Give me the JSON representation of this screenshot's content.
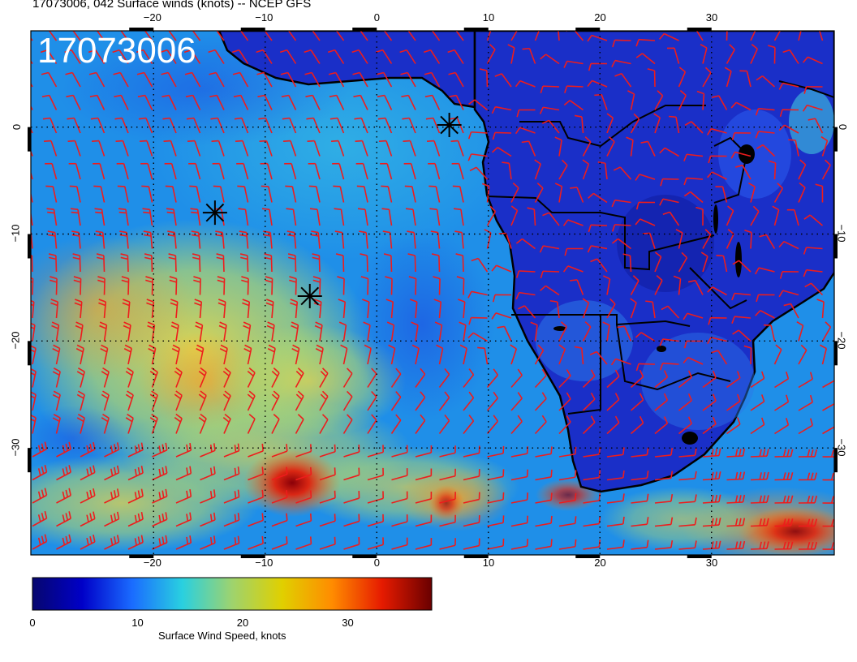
{
  "title": "17073006, 042 Surface winds (knots) -- NCEP GFS",
  "stamp": "17073006",
  "colorbar": {
    "label": "Surface Wind Speed, knots",
    "ticks": [
      "0",
      "10",
      "20",
      "30"
    ],
    "min": 0,
    "max": 38,
    "colors": [
      "#06066e",
      "#0000c8",
      "#1a6cff",
      "#29d0e0",
      "#9ed36e",
      "#e0d000",
      "#ff8c00",
      "#e61b00",
      "#6a0000"
    ]
  },
  "map": {
    "lon_range": [
      -31,
      41
    ],
    "lat_range": [
      -40,
      9
    ],
    "lon_ticks": [
      "-20",
      "-10",
      "0",
      "10",
      "20",
      "30"
    ],
    "lat_ticks": [
      "0",
      "-10",
      "-20",
      "-30"
    ],
    "colors": {
      "ocean": "#1f8fe8",
      "land": "#1a2fc8",
      "coast": "#000000",
      "barb": "#ee1c1c",
      "grid": "#000000"
    },
    "markers": [
      {
        "name": "marker-1",
        "lon": 6.5,
        "lat": 0.2
      },
      {
        "name": "marker-2",
        "lon": -14.5,
        "lat": -8.0
      },
      {
        "name": "marker-3",
        "lon": -6.0,
        "lat": -15.8
      }
    ]
  }
}
